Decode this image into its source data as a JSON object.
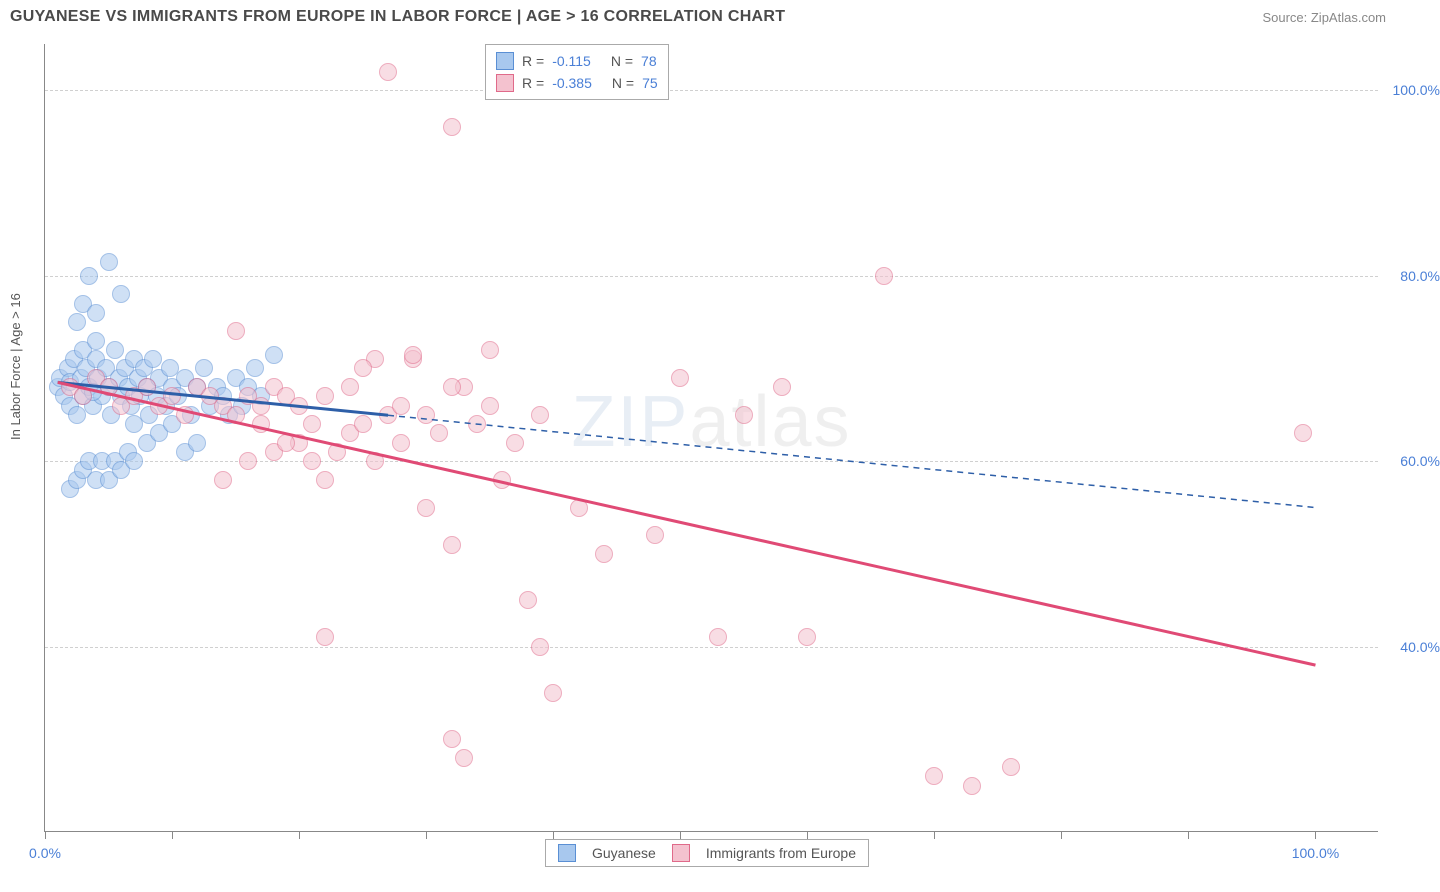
{
  "title": "GUYANESE VS IMMIGRANTS FROM EUROPE IN LABOR FORCE | AGE > 16 CORRELATION CHART",
  "source": "Source: ZipAtlas.com",
  "ylabel": "In Labor Force | Age > 16",
  "watermark_bold": "ZIP",
  "watermark_thin": "atlas",
  "chart": {
    "type": "scatter",
    "xlim": [
      0,
      105
    ],
    "ylim": [
      20,
      105
    ],
    "grid_color": "#d0d0d0",
    "background_color": "#ffffff",
    "y_gridlines": [
      40,
      60,
      80,
      100
    ],
    "y_tick_labels": [
      "40.0%",
      "60.0%",
      "80.0%",
      "100.0%"
    ],
    "x_ticks": [
      0,
      10,
      20,
      30,
      40,
      50,
      60,
      70,
      80,
      90,
      100
    ],
    "x_tick_labels": {
      "0": "0.0%",
      "100": "100.0%"
    },
    "point_radius": 9,
    "point_opacity": 0.55,
    "series": [
      {
        "name": "Guyanese",
        "fill_color": "#a8c8ee",
        "stroke_color": "#5a8fd4",
        "line_color": "#2e5fa8",
        "line_width": 3,
        "line_dash_after_x": 27,
        "R": "-0.115",
        "N": "78",
        "trend": {
          "x1": 1,
          "y1": 68.5,
          "x2": 100,
          "y2": 55
        },
        "points": [
          [
            1,
            68
          ],
          [
            1.2,
            69
          ],
          [
            1.5,
            67
          ],
          [
            1.8,
            70
          ],
          [
            2,
            66
          ],
          [
            2,
            68.5
          ],
          [
            2.3,
            71
          ],
          [
            2.5,
            65
          ],
          [
            2.8,
            69
          ],
          [
            3,
            72
          ],
          [
            3,
            67
          ],
          [
            3.2,
            70
          ],
          [
            3.5,
            68
          ],
          [
            3.5,
            80
          ],
          [
            3.8,
            66
          ],
          [
            4,
            71
          ],
          [
            4,
            73
          ],
          [
            4.2,
            69
          ],
          [
            4.5,
            67
          ],
          [
            4.8,
            70
          ],
          [
            5,
            68
          ],
          [
            5,
            81.5
          ],
          [
            5.2,
            65
          ],
          [
            5.5,
            72
          ],
          [
            5.8,
            69
          ],
          [
            6,
            67
          ],
          [
            6,
            78
          ],
          [
            6.3,
            70
          ],
          [
            6.5,
            68
          ],
          [
            6.8,
            66
          ],
          [
            7,
            71
          ],
          [
            7,
            64
          ],
          [
            7.3,
            69
          ],
          [
            7.5,
            67
          ],
          [
            7.8,
            70
          ],
          [
            8,
            68
          ],
          [
            8,
            62
          ],
          [
            8.2,
            65
          ],
          [
            8.5,
            71
          ],
          [
            8.8,
            67
          ],
          [
            9,
            69
          ],
          [
            9,
            63
          ],
          [
            9.5,
            66
          ],
          [
            9.8,
            70
          ],
          [
            10,
            68
          ],
          [
            10,
            64
          ],
          [
            10.5,
            67
          ],
          [
            11,
            69
          ],
          [
            11,
            61
          ],
          [
            11.5,
            65
          ],
          [
            12,
            68
          ],
          [
            12,
            62
          ],
          [
            12.5,
            70
          ],
          [
            13,
            66
          ],
          [
            13.5,
            68
          ],
          [
            14,
            67
          ],
          [
            14.5,
            65
          ],
          [
            15,
            69
          ],
          [
            15.5,
            66
          ],
          [
            16,
            68
          ],
          [
            16.5,
            70
          ],
          [
            17,
            67
          ],
          [
            18,
            71.5
          ],
          [
            2,
            57
          ],
          [
            2.5,
            58
          ],
          [
            3,
            59
          ],
          [
            3.5,
            60
          ],
          [
            4,
            58
          ],
          [
            4.5,
            60
          ],
          [
            5,
            58
          ],
          [
            5.5,
            60
          ],
          [
            6,
            59
          ],
          [
            6.5,
            61
          ],
          [
            7,
            60
          ],
          [
            3,
            77
          ],
          [
            2.5,
            75
          ],
          [
            4,
            76
          ],
          [
            3.8,
            67.5
          ]
        ]
      },
      {
        "name": "Immigrants from Europe",
        "fill_color": "#f4c2cf",
        "stroke_color": "#e06a8a",
        "line_color": "#e04a75",
        "line_width": 3,
        "line_dash_after_x": 105,
        "R": "-0.385",
        "N": "75",
        "trend": {
          "x1": 1,
          "y1": 68.5,
          "x2": 100,
          "y2": 38
        },
        "points": [
          [
            2,
            68
          ],
          [
            3,
            67
          ],
          [
            4,
            69
          ],
          [
            5,
            68
          ],
          [
            6,
            66
          ],
          [
            7,
            67
          ],
          [
            8,
            68
          ],
          [
            9,
            66
          ],
          [
            10,
            67
          ],
          [
            11,
            65
          ],
          [
            12,
            68
          ],
          [
            13,
            67
          ],
          [
            14,
            66
          ],
          [
            15,
            74
          ],
          [
            15,
            65
          ],
          [
            16,
            67
          ],
          [
            17,
            66
          ],
          [
            18,
            68
          ],
          [
            19,
            67
          ],
          [
            20,
            66
          ],
          [
            20,
            62
          ],
          [
            21,
            64
          ],
          [
            22,
            58
          ],
          [
            22,
            41
          ],
          [
            23,
            61
          ],
          [
            24,
            63
          ],
          [
            25,
            64
          ],
          [
            26,
            60
          ],
          [
            26,
            71
          ],
          [
            27,
            102
          ],
          [
            27,
            65
          ],
          [
            28,
            62
          ],
          [
            29,
            71
          ],
          [
            29,
            71.5
          ],
          [
            30,
            65
          ],
          [
            31,
            63
          ],
          [
            32,
            96
          ],
          [
            32,
            51
          ],
          [
            32,
            30
          ],
          [
            33,
            68
          ],
          [
            33,
            28
          ],
          [
            34,
            64
          ],
          [
            35,
            66
          ],
          [
            35,
            72
          ],
          [
            36,
            58
          ],
          [
            37,
            62
          ],
          [
            38,
            45
          ],
          [
            39,
            40
          ],
          [
            39,
            65
          ],
          [
            40,
            35
          ],
          [
            42,
            55
          ],
          [
            44,
            50
          ],
          [
            48,
            52
          ],
          [
            50,
            69
          ],
          [
            53,
            41
          ],
          [
            55,
            65
          ],
          [
            58,
            68
          ],
          [
            60,
            41
          ],
          [
            66,
            80
          ],
          [
            70,
            26
          ],
          [
            73,
            25
          ],
          [
            76,
            27
          ],
          [
            99,
            63
          ],
          [
            14,
            58
          ],
          [
            16,
            60
          ],
          [
            18,
            61
          ],
          [
            22,
            67
          ],
          [
            24,
            68
          ],
          [
            30,
            55
          ],
          [
            32,
            68
          ],
          [
            25,
            70
          ],
          [
            28,
            66
          ],
          [
            19,
            62
          ],
          [
            21,
            60
          ],
          [
            17,
            64
          ]
        ]
      }
    ]
  },
  "legend_bottom": [
    {
      "label": "Guyanese",
      "fill": "#a8c8ee",
      "stroke": "#5a8fd4"
    },
    {
      "label": "Immigrants from Europe",
      "fill": "#f4c2cf",
      "stroke": "#e06a8a"
    }
  ]
}
